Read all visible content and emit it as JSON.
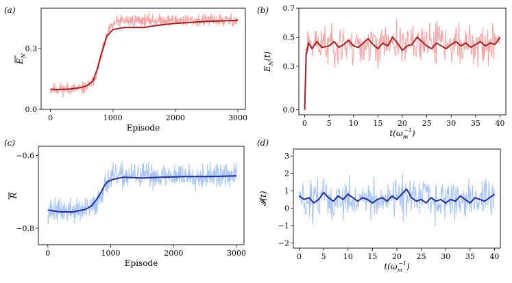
{
  "colors": {
    "red_raw": "#f4a5a5",
    "red_smooth": "#9b2226",
    "blue_raw": "#a8c4f3",
    "blue_smooth": "#1f2b95"
  },
  "chart_data": [
    {
      "id": "a",
      "panel_label": "(a)",
      "type": "line",
      "xlabel": "Episode",
      "ylabel": "Ē_N",
      "ylabel_main": "E",
      "ylabel_sub": "N",
      "xlim": [
        -150,
        3120
      ],
      "ylim": [
        0.0,
        0.5
      ],
      "xticks": [
        0,
        1000,
        2000,
        3000
      ],
      "xtick_labels": [
        "0",
        "1000",
        "2000",
        "3000"
      ],
      "yticks": [
        0.0,
        0.3
      ],
      "ytick_labels": [
        "0.0",
        "0.3"
      ],
      "series": [
        {
          "name": "raw",
          "role": "raw",
          "color_key": "red_raw",
          "gen": "logistic",
          "x_start": 0,
          "x_end": 3000,
          "n": 600,
          "low": 0.1,
          "high": 0.44,
          "mid": 820,
          "width": 70,
          "noise": 0.028,
          "seed": 11
        },
        {
          "name": "smoothed",
          "role": "smooth",
          "color_key": "red_smooth",
          "keypoints": [
            [
              0,
              0.1
            ],
            [
              100,
              0.098
            ],
            [
              300,
              0.1
            ],
            [
              500,
              0.108
            ],
            [
              600,
              0.12
            ],
            [
              680,
              0.14
            ],
            [
              750,
              0.2
            ],
            [
              800,
              0.26
            ],
            [
              850,
              0.31
            ],
            [
              900,
              0.36
            ],
            [
              1000,
              0.395
            ],
            [
              1200,
              0.405
            ],
            [
              1500,
              0.405
            ],
            [
              1700,
              0.415
            ],
            [
              2000,
              0.425
            ],
            [
              2500,
              0.435
            ],
            [
              3000,
              0.44
            ]
          ]
        }
      ]
    },
    {
      "id": "b",
      "panel_label": "(b)",
      "type": "line",
      "xlabel": "t(ω_m^-1)",
      "xlabel_main": "t(ω",
      "xlabel_sub": "m",
      "xlabel_sup": "−1",
      "xlabel_close": ")",
      "ylabel": "E_N(t)",
      "ylabel_main": "E",
      "ylabel_sub": "N",
      "ylabel_rest": "(t)",
      "xlim": [
        -1.2,
        41.2
      ],
      "ylim": [
        -0.035,
        0.7
      ],
      "xticks": [
        0,
        5,
        10,
        15,
        20,
        25,
        30,
        35,
        40
      ],
      "xtick_labels": [
        "0",
        "5",
        "10",
        "15",
        "20",
        "25",
        "30",
        "35",
        "40"
      ],
      "yticks": [
        0.0,
        0.3,
        0.5,
        0.7
      ],
      "ytick_labels": [
        "0.0",
        "0.3",
        "0.5",
        "0.7"
      ],
      "series": [
        {
          "name": "raw",
          "role": "raw",
          "color_key": "red_raw",
          "gen": "noisy",
          "x_start": 0,
          "x_end": 40,
          "n": 320,
          "base": 0.45,
          "noise": 0.12,
          "min": 0.12,
          "max": 0.66,
          "start_value": 0.0,
          "rise_until": 0.25,
          "seed": 23
        },
        {
          "name": "smoothed",
          "role": "smooth",
          "color_key": "red_smooth",
          "keypoints": [
            [
              0,
              0.0
            ],
            [
              0.3,
              0.38
            ],
            [
              0.8,
              0.46
            ],
            [
              1.5,
              0.42
            ],
            [
              2.5,
              0.47
            ],
            [
              3.5,
              0.43
            ],
            [
              5,
              0.44
            ],
            [
              6,
              0.47
            ],
            [
              7,
              0.43
            ],
            [
              8,
              0.45
            ],
            [
              9,
              0.48
            ],
            [
              10,
              0.44
            ],
            [
              11,
              0.43
            ],
            [
              12,
              0.46
            ],
            [
              13,
              0.49
            ],
            [
              14,
              0.45
            ],
            [
              15,
              0.42
            ],
            [
              16,
              0.46
            ],
            [
              17,
              0.44
            ],
            [
              18,
              0.5
            ],
            [
              19,
              0.46
            ],
            [
              20,
              0.41
            ],
            [
              21,
              0.44
            ],
            [
              22,
              0.45
            ],
            [
              23,
              0.5
            ],
            [
              24,
              0.47
            ],
            [
              25,
              0.44
            ],
            [
              26,
              0.42
            ],
            [
              27,
              0.46
            ],
            [
              28,
              0.44
            ],
            [
              29,
              0.42
            ],
            [
              30,
              0.45
            ],
            [
              31,
              0.47
            ],
            [
              32,
              0.44
            ],
            [
              33,
              0.46
            ],
            [
              34,
              0.43
            ],
            [
              35,
              0.45
            ],
            [
              36,
              0.47
            ],
            [
              37,
              0.44
            ],
            [
              38,
              0.46
            ],
            [
              39,
              0.45
            ],
            [
              40,
              0.5
            ]
          ]
        }
      ]
    },
    {
      "id": "c",
      "panel_label": "(c)",
      "type": "line",
      "xlabel": "Episode",
      "ylabel": "R̄",
      "ylabel_main": "R",
      "xlim": [
        -150,
        3120
      ],
      "ylim": [
        -0.845,
        -0.575
      ],
      "xticks": [
        0,
        1000,
        2000,
        3000
      ],
      "xtick_labels": [
        "0",
        "1000",
        "2000",
        "3000"
      ],
      "yticks": [
        -0.8,
        -0.6
      ],
      "ytick_labels": [
        "−0.8",
        "−0.6"
      ],
      "series": [
        {
          "name": "raw",
          "role": "raw",
          "color_key": "blue_raw",
          "gen": "logistic",
          "x_start": 0,
          "x_end": 3000,
          "n": 600,
          "low": -0.752,
          "high": -0.656,
          "mid": 850,
          "width": 65,
          "noise": 0.03,
          "seed": 37
        },
        {
          "name": "smoothed",
          "role": "smooth",
          "color_key": "blue_smooth",
          "keypoints": [
            [
              0,
              -0.75
            ],
            [
              200,
              -0.755
            ],
            [
              400,
              -0.755
            ],
            [
              600,
              -0.748
            ],
            [
              700,
              -0.738
            ],
            [
              780,
              -0.72
            ],
            [
              850,
              -0.7
            ],
            [
              900,
              -0.683
            ],
            [
              950,
              -0.672
            ],
            [
              1050,
              -0.665
            ],
            [
              1200,
              -0.66
            ],
            [
              1500,
              -0.662
            ],
            [
              1800,
              -0.66
            ],
            [
              2200,
              -0.658
            ],
            [
              2600,
              -0.658
            ],
            [
              3000,
              -0.656
            ]
          ]
        }
      ]
    },
    {
      "id": "d",
      "panel_label": "(d)",
      "type": "line",
      "xlabel": "t(ω_m^-1)",
      "xlabel_main": "t(ω",
      "xlabel_sub": "m",
      "xlabel_sup": "−1",
      "xlabel_close": ")",
      "ylabel": "I(t)",
      "ylabel_main": "𝓘(t)",
      "xlim": [
        -1.2,
        41.2
      ],
      "ylim": [
        -2.3,
        3.4
      ],
      "xticks": [
        0,
        5,
        10,
        15,
        20,
        25,
        30,
        35,
        40
      ],
      "xtick_labels": [
        "0",
        "5",
        "10",
        "15",
        "20",
        "25",
        "30",
        "35",
        "40"
      ],
      "yticks": [
        -2,
        -1,
        0,
        1,
        2,
        3
      ],
      "ytick_labels": [
        "−2",
        "−1",
        "0",
        "1",
        "2",
        "3"
      ],
      "series": [
        {
          "name": "raw",
          "role": "raw",
          "color_key": "blue_raw",
          "gen": "noisy",
          "x_start": 0,
          "x_end": 40,
          "n": 320,
          "base": 0.5,
          "noise": 1.0,
          "min": -2.1,
          "max": 3.2,
          "seed": 51
        },
        {
          "name": "smoothed",
          "role": "smooth",
          "color_key": "blue_smooth",
          "keypoints": [
            [
              0,
              0.7
            ],
            [
              1,
              0.5
            ],
            [
              2,
              0.6
            ],
            [
              3,
              0.3
            ],
            [
              4,
              0.5
            ],
            [
              5,
              0.9
            ],
            [
              6,
              0.6
            ],
            [
              7,
              0.4
            ],
            [
              8,
              0.7
            ],
            [
              9,
              0.5
            ],
            [
              10,
              0.8
            ],
            [
              11,
              0.6
            ],
            [
              12,
              0.4
            ],
            [
              13,
              0.6
            ],
            [
              14,
              0.5
            ],
            [
              15,
              0.3
            ],
            [
              16,
              0.5
            ],
            [
              17,
              0.6
            ],
            [
              18,
              0.4
            ],
            [
              19,
              0.7
            ],
            [
              20,
              0.5
            ],
            [
              21,
              0.8
            ],
            [
              22,
              1.1
            ],
            [
              23,
              0.6
            ],
            [
              24,
              0.4
            ],
            [
              25,
              0.5
            ],
            [
              26,
              0.3
            ],
            [
              27,
              0.6
            ],
            [
              28,
              0.4
            ],
            [
              29,
              0.5
            ],
            [
              30,
              0.3
            ],
            [
              31,
              0.5
            ],
            [
              32,
              0.4
            ],
            [
              33,
              0.7
            ],
            [
              34,
              0.5
            ],
            [
              35,
              0.3
            ],
            [
              36,
              0.6
            ],
            [
              37,
              0.5
            ],
            [
              38,
              0.4
            ],
            [
              39,
              0.6
            ],
            [
              40,
              0.8
            ]
          ]
        }
      ]
    }
  ]
}
